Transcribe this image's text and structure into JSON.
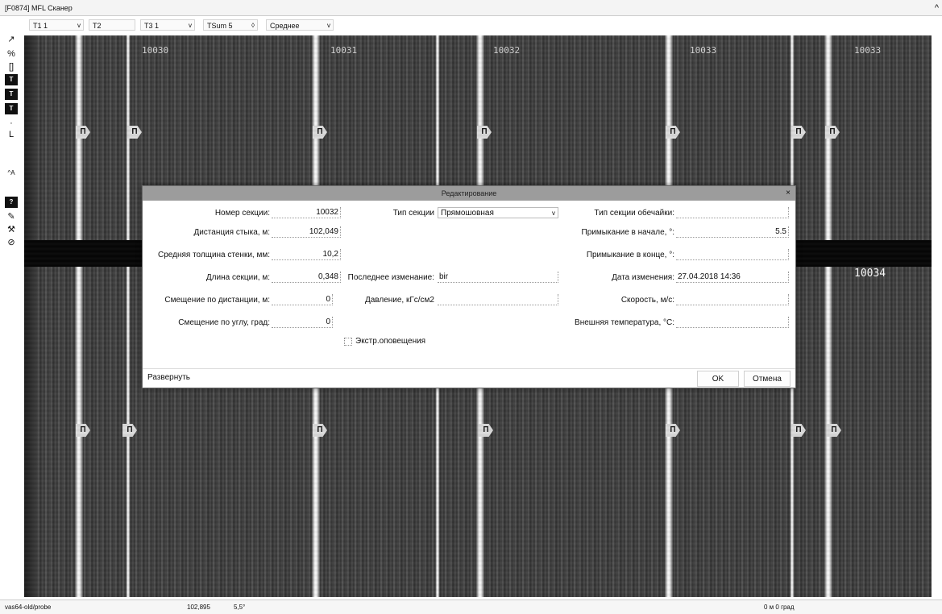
{
  "window": {
    "title": "[F0874] MFL Сканер",
    "controls": "^"
  },
  "toolbar": {
    "combos": [
      {
        "label": "T1 1",
        "arrow": "v"
      },
      {
        "label": "T2",
        "arrow": ""
      },
      {
        "label": "T3 1",
        "arrow": "v"
      },
      {
        "label": "TSum 5",
        "arrow": "◊"
      },
      {
        "label": "Среднее",
        "arrow": "v"
      }
    ]
  },
  "left_tools": [
    {
      "icon": "pointer-icon",
      "glyph": "↗"
    },
    {
      "icon": "percent-icon",
      "glyph": "%"
    },
    {
      "icon": "bracket-icon",
      "glyph": "[]"
    },
    {
      "icon": "tool-box-1-icon",
      "glyph": "T"
    },
    {
      "icon": "tool-box-2-icon",
      "glyph": "T"
    },
    {
      "icon": "tool-box-3-icon",
      "glyph": "T"
    },
    {
      "icon": "dot-icon",
      "glyph": "·"
    },
    {
      "icon": "l-marker-icon",
      "glyph": "L"
    },
    {
      "icon": "small-text-icon",
      "glyph": "^A"
    },
    {
      "icon": "question-icon",
      "glyph": "?"
    },
    {
      "icon": "pen-icon",
      "glyph": "✎"
    },
    {
      "icon": "wrench-icon",
      "glyph": "⚒"
    },
    {
      "icon": "stop-icon",
      "glyph": "⊘"
    }
  ],
  "viewport": {
    "section_labels": [
      "10030",
      "10031",
      "10032",
      "10033",
      "10033"
    ],
    "right_label": "10034",
    "marker_glyph": "П"
  },
  "dialog": {
    "title": "Редактирование",
    "close": "×",
    "fields": {
      "section_number": {
        "label": "Номер секции:",
        "value": "10032"
      },
      "joint_distance": {
        "label": "Дистанция стыка, м:",
        "value": "102,049"
      },
      "avg_wall": {
        "label": "Средняя толщина стенки, мм:",
        "value": "10,2"
      },
      "section_length": {
        "label": "Длина секции, м:",
        "value": "0,348"
      },
      "distance_offset": {
        "label": "Смещение по дистанции, м:",
        "value": "0"
      },
      "angle_offset": {
        "label": "Смещение по углу, град:",
        "value": "0"
      },
      "section_type": {
        "label": "Тип секции",
        "value": "Прямошовная"
      },
      "last_change": {
        "label": "Последнее изменание:",
        "value": "bir"
      },
      "pressure": {
        "label": "Давление, кГс/см2",
        "value": ""
      },
      "shell_type": {
        "label": "Тип секции обечайки:",
        "value": ""
      },
      "adjacency_start": {
        "label": "Примыкание в начале, °:",
        "value": "5.5"
      },
      "adjacency_end": {
        "label": "Примыкание в конце, °:",
        "value": ""
      },
      "change_date": {
        "label": "Дата изменения:",
        "value": "27.04.2018 14:36"
      },
      "speed": {
        "label": "Скорость, м/с:",
        "value": ""
      },
      "external_temp": {
        "label": "Внешняя температура, °С:",
        "value": ""
      }
    },
    "checkbox_label": "Экстр.оповещения",
    "expand_label": "Развернуть",
    "ok_label": "OK",
    "cancel_label": "Отмена"
  },
  "statusbar": {
    "path": "vas64-old/probe",
    "distance": "102,895",
    "angle": "5,5°",
    "right_text": "0 м  0 град"
  }
}
